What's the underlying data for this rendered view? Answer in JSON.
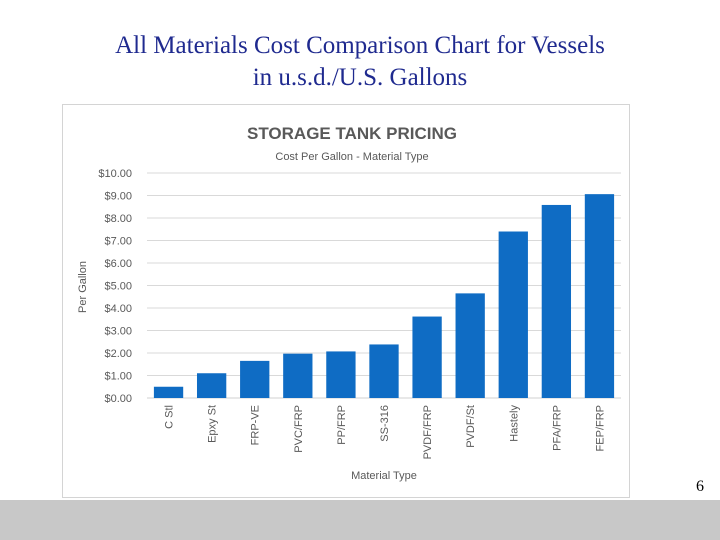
{
  "slide": {
    "title_line1": "All Materials Cost Comparison Chart for Vessels",
    "title_line2": "in u.s.d./U.S. Gallons",
    "page_number": "6"
  },
  "colors": {
    "title": "#1f2a8f",
    "bar": "#0f6cc4",
    "grid": "#d9d9d9",
    "axis_text": "#595959",
    "chart_title": "#595959",
    "footer": "#c8c8c8"
  },
  "chart_data": {
    "type": "bar",
    "title": "STORAGE TANK PRICING",
    "subtitle": "Cost Per Gallon - Material Type",
    "xlabel": "Material Type",
    "ylabel": "Per Gallon",
    "categories": [
      "C Stl",
      "Epxy St",
      "FRP-VE",
      "PVC/FRP",
      "PP/FRP",
      "SS-316",
      "PVDF/FRP",
      "PVDF/St",
      "Hastely",
      "PFA/FRP",
      "FEP/FRP"
    ],
    "values": [
      0.5,
      1.1,
      1.65,
      1.97,
      2.07,
      2.38,
      3.62,
      4.65,
      7.4,
      8.58,
      9.06
    ],
    "ylim": [
      0,
      10
    ],
    "yticks": [
      "$0.00",
      "$1.00",
      "$2.00",
      "$3.00",
      "$4.00",
      "$5.00",
      "$6.00",
      "$7.00",
      "$8.00",
      "$9.00",
      "$10.00"
    ],
    "grid": true,
    "legend": "none"
  }
}
